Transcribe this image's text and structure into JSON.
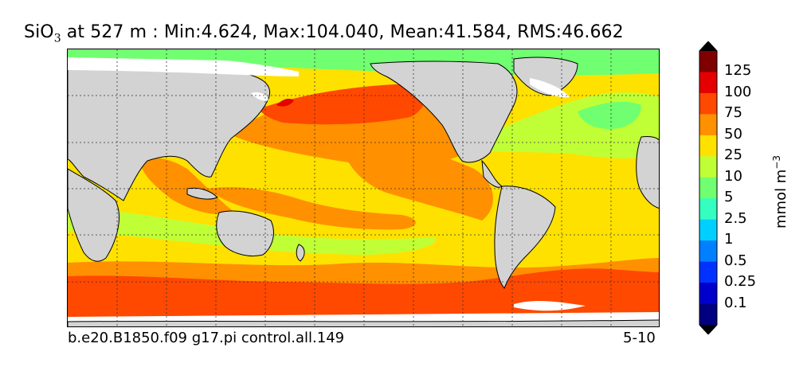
{
  "title": {
    "prefix": "SiO",
    "subscript": "3",
    "rest": " at 527 m : Min:4.624, Max:104.040, Mean:41.584, RMS:46.662"
  },
  "footer": {
    "case_name": "b.e20.B1850.f09 g17.pi control.all.149",
    "years": "5-10"
  },
  "colorbar": {
    "unit_base": "mmol m",
    "unit_exponent": "−3",
    "levels": [
      "0.1",
      "0.25",
      "0.5",
      "1",
      "2.5",
      "5",
      "10",
      "25",
      "50",
      "75",
      "100",
      "125"
    ],
    "colors": [
      "#000080",
      "#0000cd",
      "#0032ff",
      "#0080ff",
      "#00d0ff",
      "#35ffc0",
      "#70ff70",
      "#c0ff35",
      "#ffe100",
      "#ff9000",
      "#ff4800",
      "#e40000",
      "#800000"
    ]
  },
  "map": {
    "land_color": "#d3d3d3",
    "ice_color": "#ffffff",
    "grid": true
  }
}
